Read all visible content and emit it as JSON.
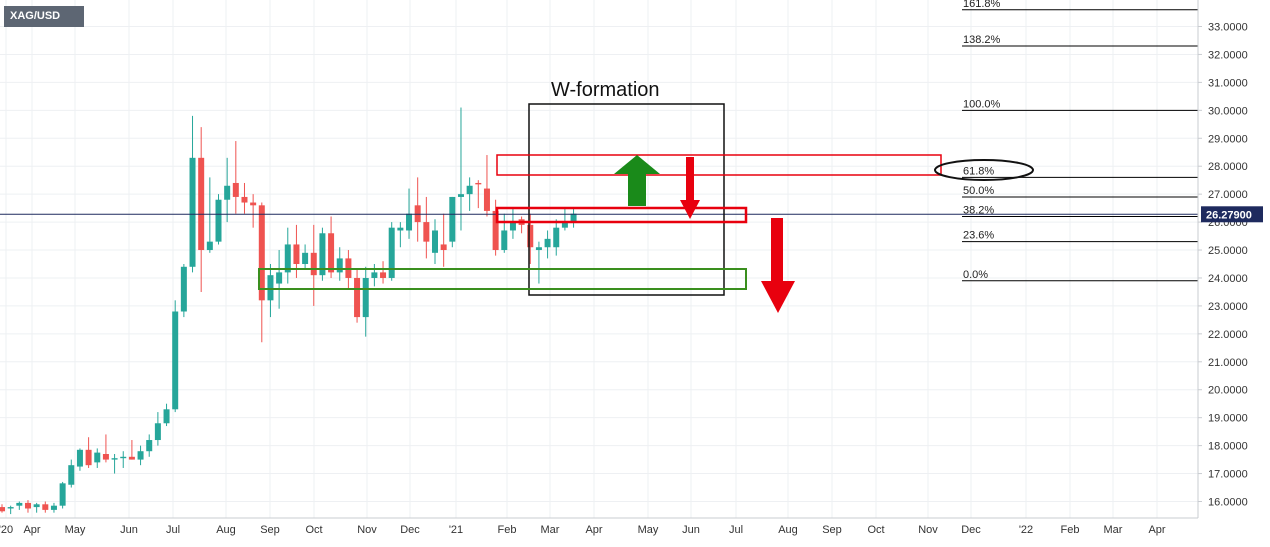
{
  "symbol": "XAG/USD",
  "price_label": "26.27900",
  "annotation_title": "W-formation",
  "colors": {
    "up": "#26a69a",
    "down": "#ef5350",
    "price_line": "#1e2a5e",
    "green_arrow": "#1a8a1a",
    "red_box": "#e8000e",
    "green_box": "#3a8f1e"
  },
  "chart_data": {
    "type": "candlestick",
    "y_ticks": [
      "16.0000",
      "17.0000",
      "18.0000",
      "19.0000",
      "20.0000",
      "21.0000",
      "22.0000",
      "23.0000",
      "24.0000",
      "25.0000",
      "26.0000",
      "27.0000",
      "28.0000",
      "29.0000",
      "30.0000",
      "31.0000",
      "32.0000",
      "33.0000"
    ],
    "x_ticks": [
      "'20",
      "Apr",
      "May",
      "Jun",
      "Jul",
      "Aug",
      "Sep",
      "Oct",
      "Nov",
      "Dec",
      "'21",
      "Feb",
      "Mar",
      "Apr",
      "May",
      "Jun",
      "Jul",
      "Aug",
      "Sep",
      "Oct",
      "Nov",
      "Dec",
      "'22",
      "Feb",
      "Mar",
      "Apr"
    ],
    "last_price": 26.279,
    "candles": [
      {
        "o": 15.8,
        "h": 15.9,
        "l": 15.6,
        "c": 15.65
      },
      {
        "o": 15.75,
        "h": 15.85,
        "l": 15.55,
        "c": 15.8
      },
      {
        "o": 15.85,
        "h": 16.0,
        "l": 15.7,
        "c": 15.95
      },
      {
        "o": 15.95,
        "h": 16.05,
        "l": 15.6,
        "c": 15.75
      },
      {
        "o": 15.8,
        "h": 15.95,
        "l": 15.6,
        "c": 15.9
      },
      {
        "o": 15.9,
        "h": 16.0,
        "l": 15.6,
        "c": 15.7
      },
      {
        "o": 15.7,
        "h": 15.95,
        "l": 15.6,
        "c": 15.85
      },
      {
        "o": 15.85,
        "h": 16.7,
        "l": 15.75,
        "c": 16.65
      },
      {
        "o": 16.6,
        "h": 17.5,
        "l": 16.5,
        "c": 17.3
      },
      {
        "o": 17.25,
        "h": 17.9,
        "l": 17.1,
        "c": 17.85
      },
      {
        "o": 17.85,
        "h": 18.3,
        "l": 17.2,
        "c": 17.3
      },
      {
        "o": 17.4,
        "h": 17.9,
        "l": 17.2,
        "c": 17.75
      },
      {
        "o": 17.7,
        "h": 18.4,
        "l": 17.4,
        "c": 17.5
      },
      {
        "o": 17.5,
        "h": 17.7,
        "l": 17.0,
        "c": 17.55
      },
      {
        "o": 17.55,
        "h": 17.8,
        "l": 17.2,
        "c": 17.6
      },
      {
        "o": 17.6,
        "h": 18.2,
        "l": 17.5,
        "c": 17.5
      },
      {
        "o": 17.5,
        "h": 18.0,
        "l": 17.3,
        "c": 17.8
      },
      {
        "o": 17.8,
        "h": 18.4,
        "l": 17.6,
        "c": 18.2
      },
      {
        "o": 18.2,
        "h": 19.2,
        "l": 18.0,
        "c": 18.8
      },
      {
        "o": 18.8,
        "h": 19.5,
        "l": 18.7,
        "c": 19.3
      },
      {
        "o": 19.3,
        "h": 23.2,
        "l": 19.2,
        "c": 22.8
      },
      {
        "o": 22.8,
        "h": 24.5,
        "l": 22.6,
        "c": 24.4
      },
      {
        "o": 24.4,
        "h": 29.8,
        "l": 24.2,
        "c": 28.3
      },
      {
        "o": 28.3,
        "h": 29.4,
        "l": 23.5,
        "c": 25.0
      },
      {
        "o": 25.0,
        "h": 27.6,
        "l": 24.9,
        "c": 25.3
      },
      {
        "o": 25.3,
        "h": 27.0,
        "l": 25.2,
        "c": 26.8
      },
      {
        "o": 26.8,
        "h": 28.3,
        "l": 26.0,
        "c": 27.3
      },
      {
        "o": 27.4,
        "h": 28.9,
        "l": 26.3,
        "c": 26.9
      },
      {
        "o": 26.9,
        "h": 27.4,
        "l": 26.3,
        "c": 26.7
      },
      {
        "o": 26.7,
        "h": 27.0,
        "l": 25.8,
        "c": 26.6
      },
      {
        "o": 26.6,
        "h": 26.7,
        "l": 21.7,
        "c": 23.2
      },
      {
        "o": 23.2,
        "h": 24.5,
        "l": 22.6,
        "c": 24.1
      },
      {
        "o": 23.8,
        "h": 25.0,
        "l": 22.9,
        "c": 24.2
      },
      {
        "o": 24.2,
        "h": 25.8,
        "l": 23.8,
        "c": 25.2
      },
      {
        "o": 25.2,
        "h": 25.9,
        "l": 24.0,
        "c": 24.5
      },
      {
        "o": 24.5,
        "h": 25.2,
        "l": 24.3,
        "c": 24.9
      },
      {
        "o": 24.9,
        "h": 25.9,
        "l": 23.0,
        "c": 24.1
      },
      {
        "o": 24.1,
        "h": 25.8,
        "l": 23.9,
        "c": 25.6
      },
      {
        "o": 25.6,
        "h": 26.2,
        "l": 24.0,
        "c": 24.2
      },
      {
        "o": 24.2,
        "h": 25.1,
        "l": 23.9,
        "c": 24.7
      },
      {
        "o": 24.7,
        "h": 25.0,
        "l": 23.6,
        "c": 24.0
      },
      {
        "o": 24.0,
        "h": 24.3,
        "l": 22.4,
        "c": 22.6
      },
      {
        "o": 22.6,
        "h": 24.4,
        "l": 21.9,
        "c": 24.0
      },
      {
        "o": 24.0,
        "h": 24.5,
        "l": 23.7,
        "c": 24.2
      },
      {
        "o": 24.2,
        "h": 24.6,
        "l": 23.8,
        "c": 24.0
      },
      {
        "o": 24.0,
        "h": 26.0,
        "l": 23.9,
        "c": 25.8
      },
      {
        "o": 25.7,
        "h": 26.0,
        "l": 25.1,
        "c": 25.8
      },
      {
        "o": 25.7,
        "h": 27.2,
        "l": 25.4,
        "c": 26.3
      },
      {
        "o": 26.6,
        "h": 27.6,
        "l": 25.3,
        "c": 26.0
      },
      {
        "o": 26.0,
        "h": 26.9,
        "l": 24.7,
        "c": 25.3
      },
      {
        "o": 24.9,
        "h": 26.1,
        "l": 24.5,
        "c": 25.7
      },
      {
        "o": 25.2,
        "h": 26.3,
        "l": 24.4,
        "c": 25.0
      },
      {
        "o": 25.3,
        "h": 26.9,
        "l": 25.1,
        "c": 26.9
      },
      {
        "o": 26.9,
        "h": 30.1,
        "l": 25.7,
        "c": 27.0
      },
      {
        "o": 27.0,
        "h": 27.6,
        "l": 26.4,
        "c": 27.3
      },
      {
        "o": 27.4,
        "h": 27.5,
        "l": 26.5,
        "c": 27.35
      },
      {
        "o": 27.2,
        "h": 28.4,
        "l": 26.2,
        "c": 26.4
      },
      {
        "o": 26.4,
        "h": 26.8,
        "l": 24.8,
        "c": 25.0
      },
      {
        "o": 25.0,
        "h": 26.3,
        "l": 24.9,
        "c": 25.7
      },
      {
        "o": 25.7,
        "h": 26.5,
        "l": 25.4,
        "c": 26.0
      },
      {
        "o": 26.1,
        "h": 26.2,
        "l": 25.6,
        "c": 25.9
      },
      {
        "o": 25.9,
        "h": 26.3,
        "l": 24.5,
        "c": 25.1
      },
      {
        "o": 25.0,
        "h": 25.3,
        "l": 23.8,
        "c": 25.1
      },
      {
        "o": 25.1,
        "h": 25.7,
        "l": 24.7,
        "c": 25.4
      },
      {
        "o": 25.1,
        "h": 26.1,
        "l": 24.8,
        "c": 25.8
      },
      {
        "o": 25.8,
        "h": 26.5,
        "l": 25.7,
        "c": 26.0
      },
      {
        "o": 26.0,
        "h": 26.5,
        "l": 25.8,
        "c": 26.3
      }
    ],
    "fib_levels": [
      {
        "label": "161.8%",
        "value": 33.6
      },
      {
        "label": "138.2%",
        "value": 32.3
      },
      {
        "label": "100.0%",
        "value": 30.0
      },
      {
        "label": "61.8%",
        "value": 27.6
      },
      {
        "label": "50.0%",
        "value": 26.9
      },
      {
        "label": "38.2%",
        "value": 26.2
      },
      {
        "label": "23.6%",
        "value": 25.3
      },
      {
        "label": "0.0%",
        "value": 23.9
      }
    ]
  }
}
